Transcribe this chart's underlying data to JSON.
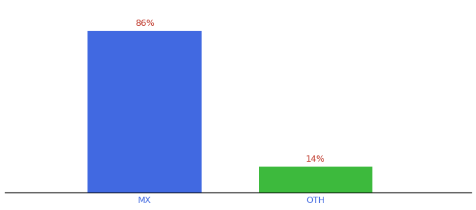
{
  "categories": [
    "MX",
    "OTH"
  ],
  "values": [
    86,
    14
  ],
  "bar_colors": [
    "#4169e1",
    "#3dba3d"
  ],
  "label_color": "#c0392b",
  "tick_label_color": "#4169e1",
  "background_color": "#ffffff",
  "ylim": [
    0,
    100
  ],
  "bar_width": 0.22,
  "label_fontsize": 9,
  "tick_fontsize": 9,
  "x_positions": [
    0.32,
    0.65
  ]
}
